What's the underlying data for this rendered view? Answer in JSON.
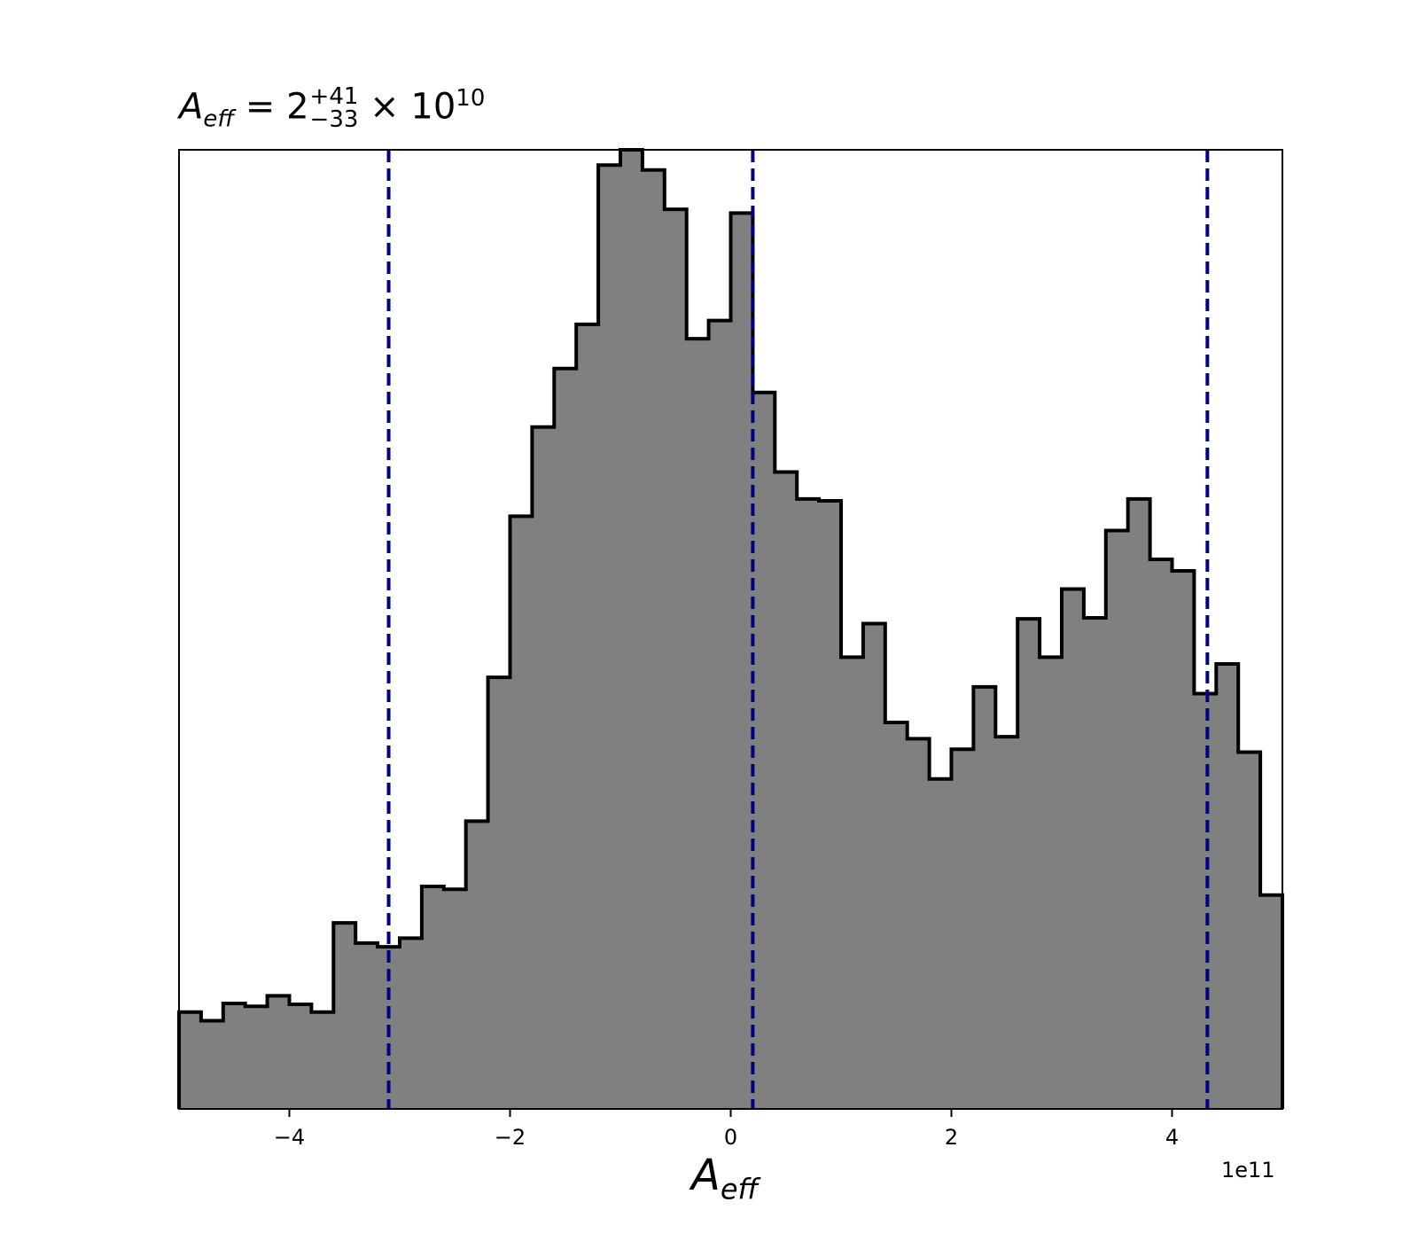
{
  "chart_data": {
    "type": "histogram",
    "title": {
      "symbol": "A",
      "subscript": "eff",
      "equals": "= 2",
      "upper": "+41",
      "lower": "−33",
      "times": "× 10",
      "exponent": "10"
    },
    "xlabel": {
      "symbol": "A",
      "subscript": "eff"
    },
    "x_offset_label": "1e11",
    "xlim": [
      -5.0,
      5.0
    ],
    "ylim": [
      0,
      1.0
    ],
    "xticks": [
      -4,
      -2,
      0,
      2,
      4
    ],
    "xtick_labels": [
      "−4",
      "−2",
      "0",
      "2",
      "4"
    ],
    "y_axis_visible": false,
    "bin_edges": [
      -5.0,
      -4.8,
      -4.6,
      -4.4,
      -4.2,
      -4.0,
      -3.8,
      -3.6,
      -3.4,
      -3.2,
      -3.0,
      -2.8,
      -2.6,
      -2.4,
      -2.2,
      -2.0,
      -1.8,
      -1.6,
      -1.4,
      -1.2,
      -1.0,
      -0.8,
      -0.6,
      -0.4,
      -0.2,
      0.0,
      0.2,
      0.4,
      0.6,
      0.8,
      1.0,
      1.2,
      1.4,
      1.6,
      1.8,
      2.0,
      2.2,
      2.4,
      2.6,
      2.8,
      3.0,
      3.2,
      3.4,
      3.6,
      3.8,
      4.0,
      4.2,
      4.4,
      4.6,
      4.8,
      5.0
    ],
    "counts": [
      0.101,
      0.092,
      0.11,
      0.107,
      0.118,
      0.109,
      0.101,
      0.194,
      0.173,
      0.169,
      0.178,
      0.232,
      0.229,
      0.3,
      0.45,
      0.618,
      0.711,
      0.772,
      0.818,
      0.984,
      1.0,
      0.979,
      0.938,
      0.803,
      0.822,
      0.934,
      0.747,
      0.664,
      0.636,
      0.634,
      0.471,
      0.506,
      0.403,
      0.386,
      0.344,
      0.375,
      0.44,
      0.388,
      0.511,
      0.471,
      0.542,
      0.512,
      0.603,
      0.636,
      0.573,
      0.561,
      0.433,
      0.464,
      0.372,
      0.223
    ],
    "vlines": [
      -3.1,
      0.2,
      4.32
    ],
    "colors": {
      "fill": "#808080",
      "edge": "#000000",
      "vline": "#000080"
    }
  }
}
